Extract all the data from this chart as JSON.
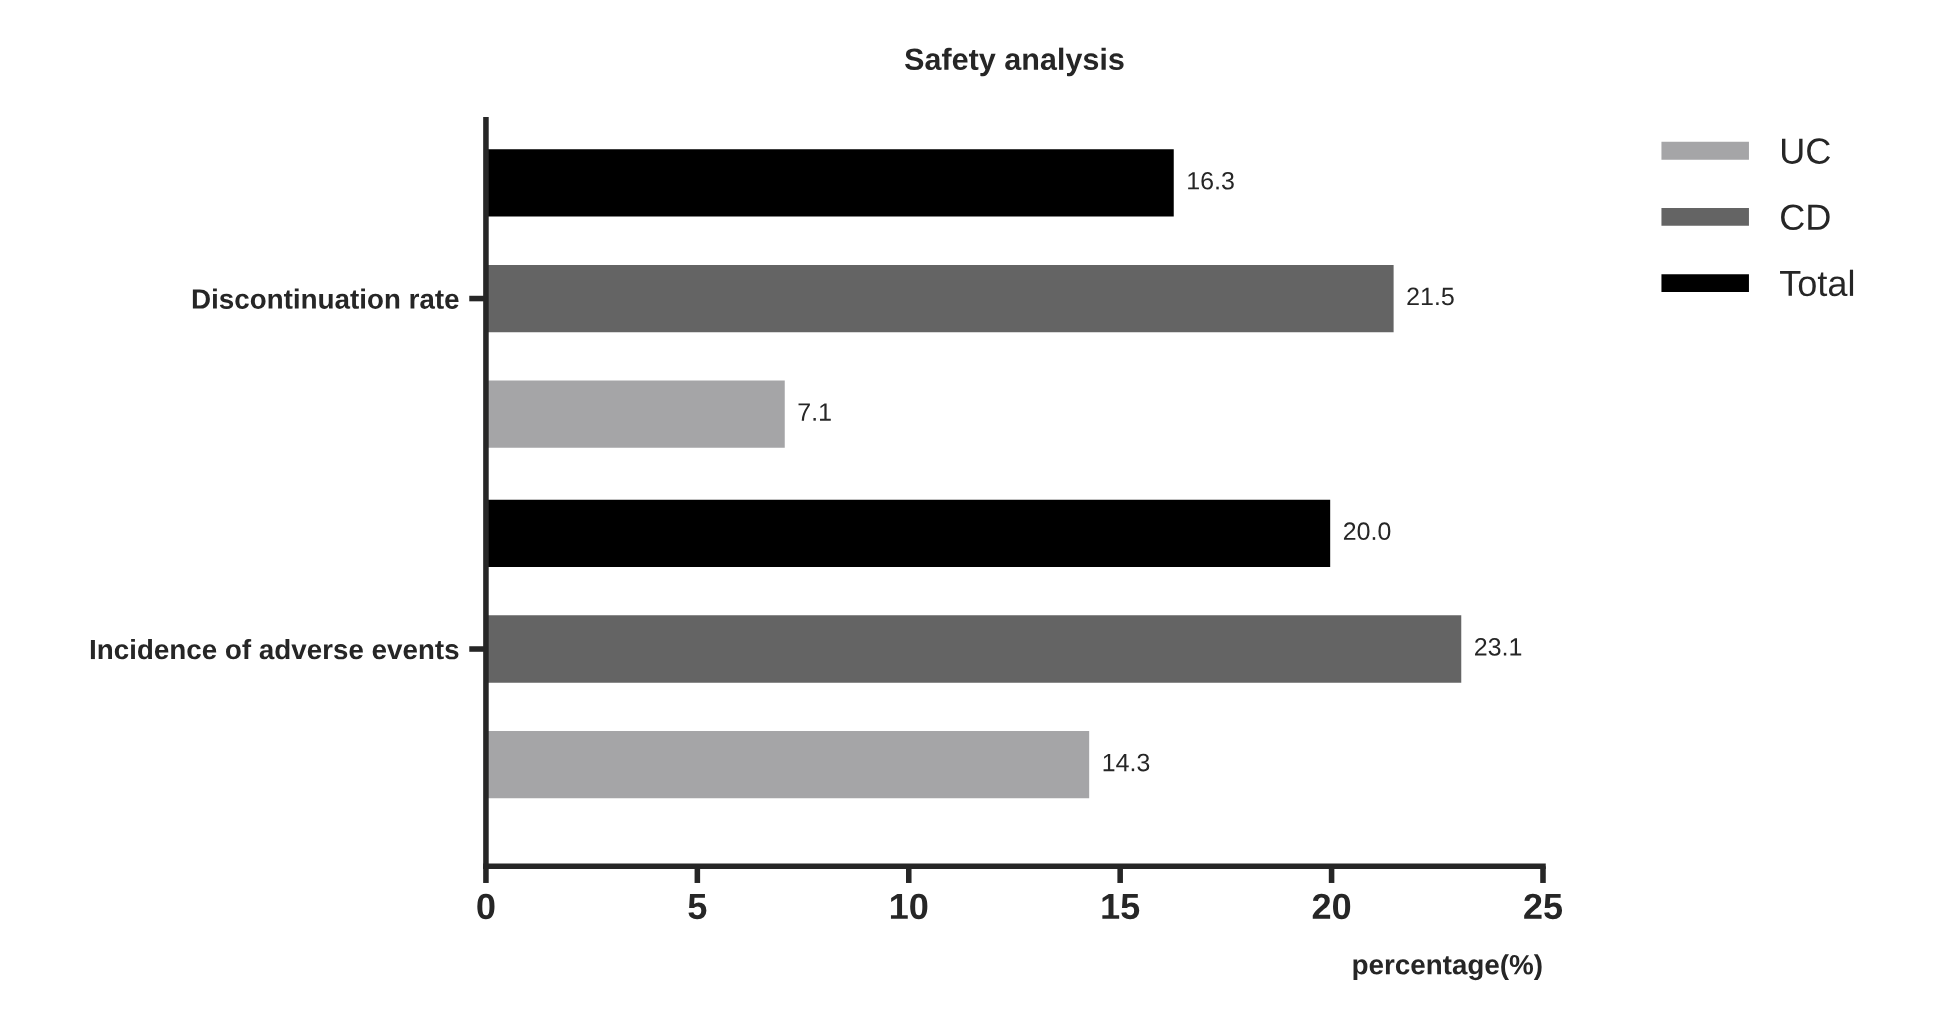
{
  "chart_data": {
    "type": "bar",
    "orientation": "horizontal",
    "title": "Safety analysis",
    "xlabel": "percentage(%)",
    "categories": [
      "Discontinuation rate",
      "Incidence of adverse events"
    ],
    "series": [
      {
        "name": "UC",
        "color": "#a5a5a7",
        "values": [
          7.1,
          14.3
        ],
        "value_labels": [
          "7.1",
          "14.3"
        ]
      },
      {
        "name": "CD",
        "color": "#646464",
        "values": [
          21.5,
          23.1
        ],
        "value_labels": [
          "21.5",
          "23.1"
        ]
      },
      {
        "name": "Total",
        "color": "#000000",
        "values": [
          16.3,
          20.0
        ],
        "value_labels": [
          "16.3",
          "20.0"
        ]
      }
    ],
    "xlim": [
      0,
      25
    ],
    "xticks": [
      0,
      5,
      10,
      15,
      20,
      25
    ],
    "grid": false,
    "legend": "top right"
  }
}
